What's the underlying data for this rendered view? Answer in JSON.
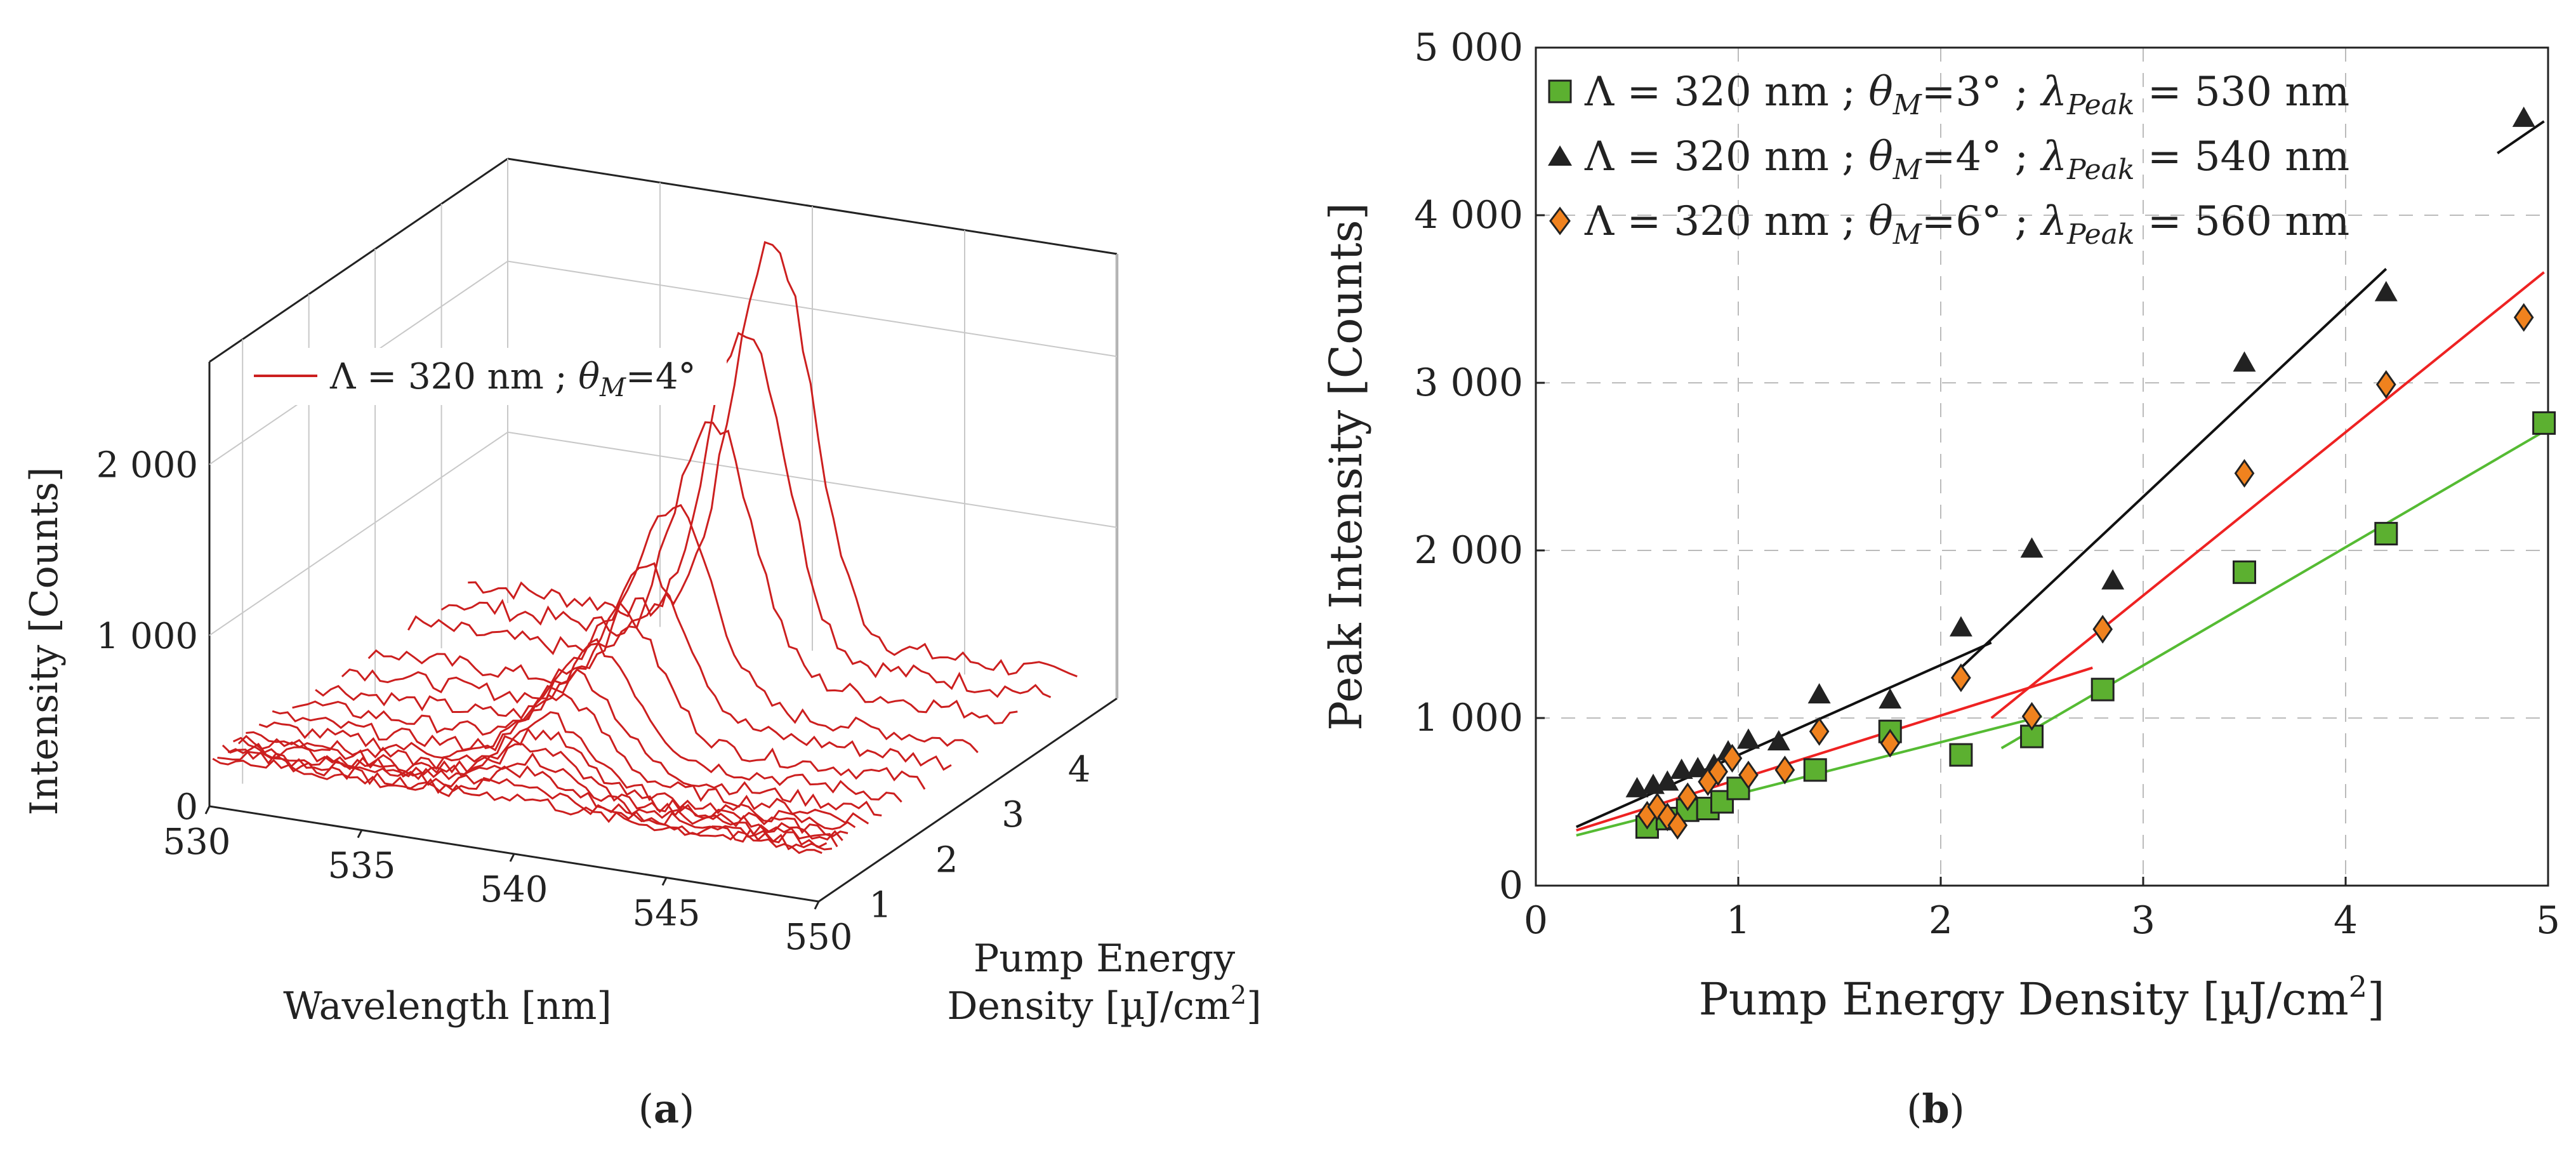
{
  "chart_data": [
    {
      "id": "a",
      "type": "line",
      "panel_label": "(a)",
      "panel_letter": "a",
      "xlabel": "Wavelength [nm]",
      "ylabel_line1": "Pump Energy",
      "ylabel_line2_prefix": "Density [µJ/cm",
      "ylabel_line2_sup": "2",
      "ylabel_line2_suffix": "]",
      "zlabel": "Intensity [Counts]",
      "x_ticks": [
        "530",
        "535",
        "540",
        "545",
        "550"
      ],
      "x_tick_values": [
        530,
        535,
        540,
        545,
        550
      ],
      "y_ticks": [
        "1",
        "2",
        "3",
        "4"
      ],
      "y_tick_values": [
        1,
        2,
        3,
        4
      ],
      "z_ticks": [
        "0",
        "1 000",
        "2 000"
      ],
      "z_tick_values": [
        0,
        1000,
        2000
      ],
      "xlim": [
        530,
        550
      ],
      "ylim": [
        0.5,
        5
      ],
      "zlim": [
        0,
        2600
      ],
      "legend": "Λ = 320 nm ; θM=4°",
      "color": "#cc1f1f",
      "spectrum": {
        "peak_nm": 540,
        "width_nm": 1.3,
        "baseline_counts": 280,
        "noise_counts": 60
      },
      "series": [
        {
          "pump": 0.55,
          "peak_counts": 320
        },
        {
          "pump": 0.62,
          "peak_counts": 380
        },
        {
          "pump": 0.7,
          "peak_counts": 430
        },
        {
          "pump": 0.78,
          "peak_counts": 480
        },
        {
          "pump": 0.86,
          "peak_counts": 530
        },
        {
          "pump": 0.94,
          "peak_counts": 590
        },
        {
          "pump": 1.05,
          "peak_counts": 650
        },
        {
          "pump": 1.25,
          "peak_counts": 720
        },
        {
          "pump": 1.45,
          "peak_counts": 800
        },
        {
          "pump": 1.75,
          "peak_counts": 880
        },
        {
          "pump": 2.1,
          "peak_counts": 1000
        },
        {
          "pump": 2.5,
          "peak_counts": 1150
        },
        {
          "pump": 2.9,
          "peak_counts": 1400
        },
        {
          "pump": 3.5,
          "peak_counts": 1750
        },
        {
          "pump": 4.0,
          "peak_counts": 2150
        },
        {
          "pump": 4.4,
          "peak_counts": 2550
        }
      ]
    },
    {
      "id": "b",
      "type": "scatter",
      "panel_label": "(b)",
      "panel_letter": "b",
      "xlabel_prefix": "Pump Energy Density [µJ/cm",
      "xlabel_sup": "2",
      "xlabel_suffix": "]",
      "ylabel": "Peak Intensity [Counts]",
      "xlim": [
        0,
        5
      ],
      "ylim": [
        0,
        5000
      ],
      "x_ticks": [
        "0",
        "1",
        "2",
        "3",
        "4",
        "5"
      ],
      "x_tick_values": [
        0,
        1,
        2,
        3,
        4,
        5
      ],
      "y_ticks": [
        "0",
        "1 000",
        "2 000",
        "3 000",
        "4 000",
        "5 000"
      ],
      "y_tick_values": [
        0,
        1000,
        2000,
        3000,
        4000,
        5000
      ],
      "grid": "dashed",
      "legend_position": "top-left",
      "series": [
        {
          "name": "Λ = 320 nm ; θM=3° ; λPeak = 530 nm",
          "theta": "3°",
          "peak": "530 nm",
          "marker": "square",
          "fill": "#5cb030",
          "line_color": "#55bb33",
          "x": [
            0.55,
            0.65,
            0.75,
            0.85,
            0.92,
            1.0,
            1.38,
            1.75,
            2.1,
            2.45,
            2.8,
            3.5,
            4.2,
            4.98
          ],
          "y": [
            350,
            400,
            450,
            460,
            500,
            580,
            690,
            920,
            780,
            890,
            1170,
            1870,
            2100,
            2760
          ],
          "fits": [
            {
              "x": [
                0.2,
                2.5
              ],
              "y": [
                300,
                1010
              ]
            },
            {
              "x": [
                2.3,
                4.98
              ],
              "y": [
                820,
                2710
              ]
            }
          ]
        },
        {
          "name": "Λ = 320 nm ; θM=4° ; λPeak = 540 nm",
          "theta": "4°",
          "peak": "540 nm",
          "marker": "triangle",
          "fill": "#222222",
          "line_color": "#111111",
          "x": [
            0.5,
            0.58,
            0.65,
            0.72,
            0.8,
            0.88,
            0.95,
            1.05,
            1.2,
            1.4,
            1.75,
            2.1,
            2.45,
            2.85,
            3.5,
            4.2,
            4.88
          ],
          "y": [
            580,
            600,
            620,
            690,
            700,
            720,
            800,
            870,
            860,
            1140,
            1110,
            1540,
            2010,
            1820,
            3120,
            3540,
            4580
          ],
          "fits": [
            {
              "x": [
                0.2,
                2.25
              ],
              "y": [
                350,
                1450
              ]
            },
            {
              "x": [
                2.1,
                4.2
              ],
              "y": [
                1300,
                3680
              ]
            },
            {
              "x": [
                4.75,
                4.98
              ],
              "y": [
                4370,
                4560
              ]
            }
          ]
        },
        {
          "name": "Λ = 320 nm ; θM=6° ; λPeak = 560 nm",
          "theta": "6°",
          "peak": "560 nm",
          "marker": "diamond",
          "fill": "#f0821e",
          "line_color": "#ee2222",
          "x": [
            0.55,
            0.6,
            0.65,
            0.7,
            0.75,
            0.85,
            0.9,
            0.97,
            1.05,
            1.23,
            1.4,
            1.75,
            2.1,
            2.45,
            2.8,
            3.5,
            4.2,
            4.88
          ],
          "y": [
            420,
            470,
            410,
            360,
            530,
            620,
            680,
            760,
            660,
            690,
            920,
            850,
            1240,
            1010,
            1530,
            2460,
            2990,
            3390
          ],
          "fits": [
            {
              "x": [
                0.2,
                2.75
              ],
              "y": [
                330,
                1300
              ]
            },
            {
              "x": [
                2.25,
                4.98
              ],
              "y": [
                1000,
                3660
              ]
            }
          ]
        }
      ],
      "legend_entries": [
        {
          "lambda": "Λ = 320 nm ; ",
          "theta_sym": "θ",
          "theta_sub": "M",
          "theta_val": "=3° ; ",
          "lam_sym": "λ",
          "lam_sub": "Peak",
          "lam_val": " = 530 nm"
        },
        {
          "lambda": "Λ = 320 nm ; ",
          "theta_sym": "θ",
          "theta_sub": "M",
          "theta_val": "=4° ; ",
          "lam_sym": "λ",
          "lam_sub": "Peak",
          "lam_val": " = 540 nm"
        },
        {
          "lambda": "Λ = 320 nm ; ",
          "theta_sym": "θ",
          "theta_sub": "M",
          "theta_val": "=6° ; ",
          "lam_sym": "λ",
          "lam_sub": "Peak",
          "lam_val": " = 560 nm"
        }
      ]
    }
  ],
  "legend_a": {
    "prefix": "Λ = 320 nm ; ",
    "theta_sym": "θ",
    "theta_sub": "M",
    "theta_val": "=4°"
  }
}
